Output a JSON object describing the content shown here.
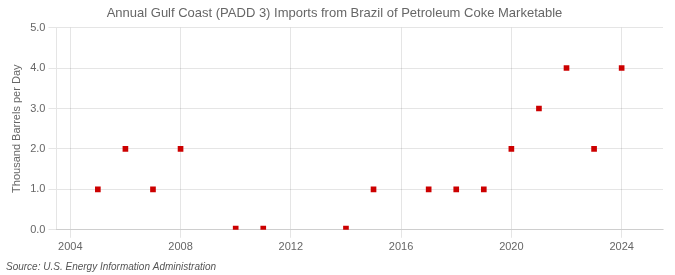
{
  "chart_data": {
    "type": "scatter",
    "title": "Annual Gulf Coast (PADD 3) Imports from Brazil of Petroleum Coke Marketable",
    "ylabel": "Thousand Barrels per Day",
    "annotation": "Source: U.S. Energy Information Administration",
    "x": [
      2005,
      2006,
      2007,
      2008,
      2010,
      2011,
      2014,
      2015,
      2017,
      2018,
      2019,
      2020,
      2021,
      2022,
      2023,
      2024
    ],
    "values": [
      1.0,
      2.0,
      1.0,
      2.0,
      0.03,
      0.03,
      0.03,
      1.0,
      1.0,
      1.0,
      1.0,
      2.0,
      3.0,
      4.0,
      2.0,
      4.0
    ],
    "color": "#cc0000",
    "marker": "square",
    "xlim": [
      2003.5,
      2025.5
    ],
    "xticks": [
      2004,
      2008,
      2012,
      2016,
      2020,
      2024
    ],
    "ylim": [
      0.0,
      5.0
    ],
    "yticks": [
      {
        "value": 0.0,
        "label": "0.0"
      },
      {
        "value": 1.0,
        "label": "1.0"
      },
      {
        "value": 2.0,
        "label": "2.0"
      },
      {
        "value": 3.0,
        "label": "3.0"
      },
      {
        "value": 4.0,
        "label": "4.0"
      },
      {
        "value": 5.0,
        "label": "5.0"
      }
    ],
    "grid": true
  }
}
